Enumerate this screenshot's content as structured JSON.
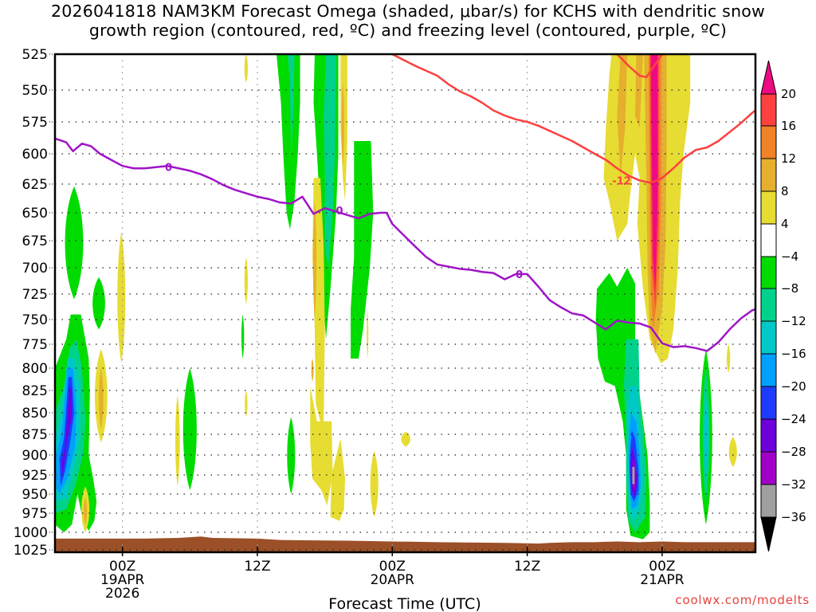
{
  "chart_data": {
    "type": "heatmap",
    "title_lines": [
      "2026041818 NAM3KM Forecast Omega (shaded, μbar/s) for KCHS with dendritic snow",
      "growth region (contoured, red, ºC) and freezing level (contoured, purple, ºC)"
    ],
    "xlabel": "Forecast Time (UTC)",
    "ylabel": "",
    "credit": "coolwx.com/modelts",
    "x_unit": "hours since 2026-04-19 00Z",
    "xlim": [
      -6,
      30
    ],
    "ylim": [
      525,
      1025
    ],
    "y_scale": "log-pressure (inverted)",
    "grid": true,
    "y_ticks": [
      525,
      550,
      575,
      600,
      625,
      650,
      675,
      700,
      725,
      750,
      775,
      800,
      825,
      850,
      875,
      900,
      925,
      950,
      975,
      1000,
      1025
    ],
    "x_ticks": [
      {
        "hour": 0,
        "lines": [
          "00Z",
          "19APR",
          "2026"
        ]
      },
      {
        "hour": 12,
        "lines": [
          "12Z"
        ]
      },
      {
        "hour": 24,
        "lines": [
          "00Z",
          "20APR"
        ]
      },
      {
        "hour": 36,
        "lines": [
          "12Z"
        ]
      },
      {
        "hour": 48,
        "lines": [
          "00Z",
          "21APR"
        ]
      }
    ],
    "colorbar": {
      "unit": "μbar/s",
      "levels": [
        20,
        16,
        12,
        8,
        4,
        -4,
        -8,
        -12,
        -16,
        -20,
        -24,
        -28,
        -32,
        -36
      ],
      "colors": [
        {
          "range": "> 20",
          "hex": "#ee0a82"
        },
        {
          "range": "16 to 20",
          "hex": "#fd4040"
        },
        {
          "range": "12 to 16",
          "hex": "#f08228"
        },
        {
          "range": "8 to 12",
          "hex": "#e6af2d"
        },
        {
          "range": "4 to 8",
          "hex": "#e6dc32"
        },
        {
          "range": "-4 to 4",
          "hex": "#ffffff"
        },
        {
          "range": "-8 to -4",
          "hex": "#00dc00"
        },
        {
          "range": "-12 to -8",
          "hex": "#00d28c"
        },
        {
          "range": "-16 to -12",
          "hex": "#00c8c8"
        },
        {
          "range": "-20 to -16",
          "hex": "#00a0ff"
        },
        {
          "range": "-24 to -20",
          "hex": "#1e3cff"
        },
        {
          "range": "-28 to -24",
          "hex": "#6e00dc"
        },
        {
          "range": "-32 to -28",
          "hex": "#a000c8"
        },
        {
          "range": "-36 to -32",
          "hex": "#a0a0a0"
        },
        {
          "range": "< -36",
          "hex": "#000000"
        }
      ]
    },
    "contours": [
      {
        "name": "freezing level",
        "value_label": "0",
        "color": "#a014c8",
        "points": [
          [
            -6,
            588
          ],
          [
            -5,
            591
          ],
          [
            -4.4,
            598
          ],
          [
            -3.6,
            592
          ],
          [
            -2.8,
            594
          ],
          [
            -2,
            600
          ],
          [
            -1,
            605
          ],
          [
            0,
            610
          ],
          [
            1,
            612
          ],
          [
            2,
            612
          ],
          [
            3,
            611
          ],
          [
            4,
            610
          ],
          [
            5,
            612
          ],
          [
            6,
            614
          ],
          [
            7,
            617
          ],
          [
            8,
            621
          ],
          [
            9,
            626
          ],
          [
            10,
            630
          ],
          [
            11,
            633
          ],
          [
            12,
            636
          ],
          [
            13,
            638
          ],
          [
            14,
            641
          ],
          [
            15,
            642
          ],
          [
            16,
            636
          ],
          [
            17,
            651
          ],
          [
            18,
            646
          ],
          [
            19,
            649
          ],
          [
            20,
            652
          ],
          [
            21,
            655
          ],
          [
            22,
            651
          ],
          [
            23,
            650
          ],
          [
            23.5,
            650
          ],
          [
            24,
            660
          ],
          [
            25,
            670
          ],
          [
            26,
            680
          ],
          [
            27,
            690
          ],
          [
            28,
            697
          ],
          [
            29,
            699
          ],
          [
            30,
            701
          ],
          [
            31,
            702
          ],
          [
            32,
            704
          ],
          [
            33,
            705
          ],
          [
            34,
            711
          ],
          [
            35,
            706
          ],
          [
            36,
            706
          ],
          [
            37,
            718
          ],
          [
            38,
            731
          ],
          [
            39,
            738
          ],
          [
            40,
            744
          ],
          [
            41,
            746
          ],
          [
            42,
            753
          ],
          [
            43,
            760
          ],
          [
            44,
            751
          ],
          [
            45,
            753
          ],
          [
            46,
            754
          ],
          [
            47,
            758
          ],
          [
            48,
            774
          ],
          [
            49,
            778
          ],
          [
            50,
            777
          ],
          [
            51,
            779
          ],
          [
            52,
            782
          ],
          [
            53,
            773
          ],
          [
            54,
            760
          ],
          [
            55,
            749
          ],
          [
            56,
            741
          ],
          [
            56.3,
            740
          ]
        ]
      },
      {
        "name": "dendritic growth zone -12C",
        "value_label": "-12",
        "color": "#fd4040",
        "points": [
          [
            24,
            525
          ],
          [
            26,
            533
          ],
          [
            28,
            540
          ],
          [
            29,
            546
          ],
          [
            30,
            551
          ],
          [
            31,
            555
          ],
          [
            32,
            560
          ],
          [
            33,
            566
          ],
          [
            34,
            570
          ],
          [
            35,
            573
          ],
          [
            36,
            575
          ],
          [
            37,
            578
          ],
          [
            38,
            582
          ],
          [
            39,
            586
          ],
          [
            40,
            590
          ],
          [
            41,
            595
          ],
          [
            42,
            600
          ],
          [
            43,
            605
          ],
          [
            44,
            612
          ],
          [
            45,
            618
          ],
          [
            46,
            622
          ],
          [
            47,
            624
          ],
          [
            48,
            620
          ],
          [
            49,
            612
          ],
          [
            50,
            603
          ],
          [
            51,
            597
          ],
          [
            52,
            595
          ],
          [
            53,
            590
          ],
          [
            54,
            583
          ],
          [
            55,
            576
          ],
          [
            55.5,
            572
          ],
          [
            56,
            568
          ],
          [
            56.3,
            566
          ]
        ]
      },
      {
        "name": "dendritic growth zone upper loop",
        "value_label": "",
        "color": "#fd4040",
        "points": [
          [
            44,
            525
          ],
          [
            45,
            533
          ],
          [
            46,
            540
          ],
          [
            46.6,
            541
          ],
          [
            47.4,
            532
          ],
          [
            48,
            525
          ]
        ]
      }
    ],
    "omega_regions": [
      {
        "hex": "#00dc00",
        "label": "-4 to -8",
        "cx": -4.3,
        "p0": 627,
        "p1": 730
      },
      {
        "hex": "#00dc00",
        "label": "-4 to -8",
        "cx": -2.3,
        "p0": 709,
        "p1": 760
      },
      {
        "hex": "#00dc00",
        "label": "-4 to -8",
        "cx": -4.3,
        "p0": 745,
        "p1": 1000,
        "strong": true
      },
      {
        "hex": "#e6dc32",
        "label": "4 to 8",
        "cx": -0.3,
        "p0": 672,
        "p1": 800
      },
      {
        "hex": "#e6dc32",
        "label": "4 to 8",
        "cx": -2.1,
        "p0": 780,
        "p1": 880
      },
      {
        "hex": "#e6dc32",
        "label": "4 to 8",
        "cx": -3.3,
        "p0": 945,
        "p1": 1000
      },
      {
        "hex": "#e6dc32",
        "label": "4 to 8",
        "cx": 4.9,
        "p0": 840,
        "p1": 935
      },
      {
        "hex": "#00dc00",
        "label": "-4 to -8",
        "cx": 6.0,
        "p0": 815,
        "p1": 950
      },
      {
        "hex": "#00dc00",
        "label": "-4 to -8",
        "cx": 9.9,
        "p0": 760,
        "p1": 790
      },
      {
        "hex": "#e6dc32",
        "label": "4 to 8",
        "cx": 10.9,
        "p0": 690,
        "p1": 735
      }
    ]
  }
}
